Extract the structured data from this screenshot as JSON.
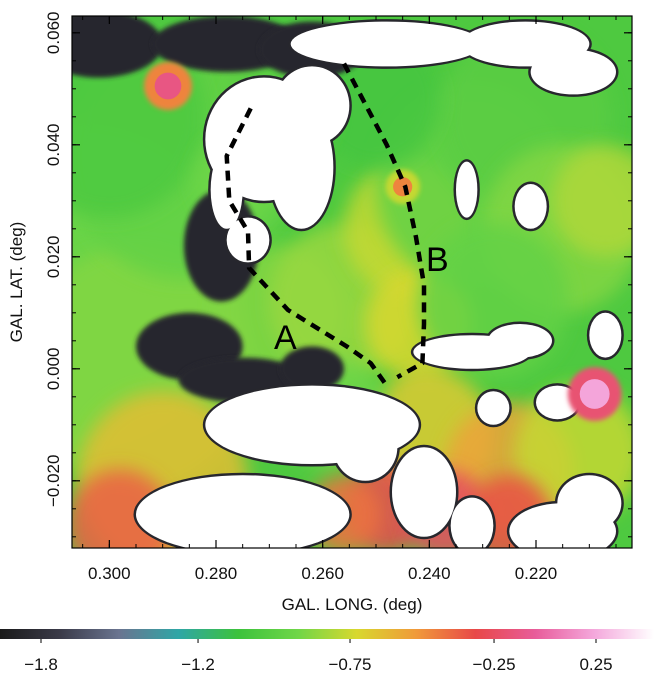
{
  "chart_data": {
    "type": "heatmap",
    "title": "",
    "xlabel": "GAL. LONG. (deg)",
    "ylabel": "GAL. LAT. (deg)",
    "xlim": [
      0.307,
      0.202
    ],
    "ylim": [
      -0.032,
      0.063
    ],
    "x_ticks": [
      {
        "value": 0.3,
        "label": "0.300"
      },
      {
        "value": 0.28,
        "label": "0.280"
      },
      {
        "value": 0.26,
        "label": "0.260"
      },
      {
        "value": 0.24,
        "label": "0.240"
      },
      {
        "value": 0.22,
        "label": "0.220"
      }
    ],
    "y_ticks": [
      {
        "value": 0.06,
        "label": "0.060"
      },
      {
        "value": 0.04,
        "label": "0.040"
      },
      {
        "value": 0.02,
        "label": "0.020"
      },
      {
        "value": 0.0,
        "label": "0.000"
      },
      {
        "value": -0.02,
        "label": "−0.020"
      }
    ],
    "colorbar": {
      "ticks": [
        {
          "value": -1.8,
          "label": "−1.8"
        },
        {
          "value": -1.2,
          "label": "−1.2"
        },
        {
          "value": -0.75,
          "label": "−0.75"
        },
        {
          "value": -0.25,
          "label": "−0.25"
        },
        {
          "value": 0.25,
          "label": "0.25"
        }
      ],
      "colormap": [
        "#1a1a1a",
        "#3a3a48",
        "#6a7490",
        "#2fa6a6",
        "#3cc23c",
        "#6fd648",
        "#d8d82e",
        "#f09a3a",
        "#e84848",
        "#e85c9a",
        "#f4a8dc",
        "#ffffff"
      ]
    },
    "annotations": [
      {
        "label": "A",
        "x": 0.267,
        "y": 0.0035
      },
      {
        "label": "B",
        "x": 0.2385,
        "y": 0.0175
      }
    ],
    "dashed_paths": [
      {
        "name": "A",
        "points": [
          [
            0.2735,
            0.0465
          ],
          [
            0.278,
            0.038
          ],
          [
            0.2775,
            0.03
          ],
          [
            0.274,
            0.0245
          ],
          [
            0.2738,
            0.018
          ],
          [
            0.2665,
            0.0105
          ],
          [
            0.2555,
            0.004
          ],
          [
            0.251,
            0.001
          ],
          [
            0.248,
            -0.003
          ]
        ]
      },
      {
        "name": "B",
        "points": [
          [
            0.256,
            0.0545
          ],
          [
            0.248,
            0.04
          ],
          [
            0.2445,
            0.0325
          ],
          [
            0.2425,
            0.0235
          ],
          [
            0.241,
            0.015
          ],
          [
            0.241,
            0.008
          ],
          [
            0.2413,
            0.001
          ],
          [
            0.246,
            -0.0015
          ]
        ]
      }
    ],
    "sources": [
      {
        "x": 0.289,
        "y": 0.0505,
        "level": 0.0,
        "r": 0.0025
      },
      {
        "x": 0.209,
        "y": -0.0045,
        "level": 0.3,
        "r": 0.0028
      },
      {
        "x": 0.245,
        "y": 0.0325,
        "level": -0.35,
        "r": 0.0018
      }
    ],
    "blobs": [
      {
        "x": 0.305,
        "y": 0.015,
        "level": -0.9,
        "r": 0.03
      },
      {
        "x": 0.295,
        "y": 0.0,
        "level": -0.85,
        "r": 0.022
      },
      {
        "x": 0.29,
        "y": -0.02,
        "level": -0.55,
        "r": 0.016
      },
      {
        "x": 0.298,
        "y": -0.028,
        "level": -0.25,
        "r": 0.01
      },
      {
        "x": 0.286,
        "y": 0.038,
        "level": -0.95,
        "r": 0.022
      },
      {
        "x": 0.3,
        "y": 0.045,
        "level": -1.05,
        "r": 0.018
      },
      {
        "x": 0.276,
        "y": 0.034,
        "level": -0.9,
        "r": 0.008
      },
      {
        "x": 0.268,
        "y": 0.01,
        "level": -0.85,
        "r": 0.012
      },
      {
        "x": 0.256,
        "y": 0.012,
        "level": -0.8,
        "r": 0.014
      },
      {
        "x": 0.244,
        "y": 0.025,
        "level": -0.7,
        "r": 0.012
      },
      {
        "x": 0.242,
        "y": 0.008,
        "level": -0.65,
        "r": 0.01
      },
      {
        "x": 0.232,
        "y": 0.033,
        "level": -0.95,
        "r": 0.018
      },
      {
        "x": 0.222,
        "y": 0.045,
        "level": -1.0,
        "r": 0.016
      },
      {
        "x": 0.215,
        "y": 0.025,
        "level": -0.85,
        "r": 0.015
      },
      {
        "x": 0.207,
        "y": 0.03,
        "level": -0.75,
        "r": 0.01
      },
      {
        "x": 0.228,
        "y": 0.012,
        "level": -0.95,
        "r": 0.014
      },
      {
        "x": 0.24,
        "y": -0.012,
        "level": -0.6,
        "r": 0.012
      },
      {
        "x": 0.225,
        "y": -0.018,
        "level": -0.45,
        "r": 0.012
      },
      {
        "x": 0.212,
        "y": -0.015,
        "level": -0.7,
        "r": 0.012
      },
      {
        "x": 0.258,
        "y": -0.008,
        "level": -0.9,
        "r": 0.01
      },
      {
        "x": 0.25,
        "y": 0.048,
        "level": -1.1,
        "r": 0.012
      },
      {
        "x": 0.268,
        "y": 0.046,
        "level": -1.0,
        "r": 0.01
      },
      {
        "x": 0.248,
        "y": -0.025,
        "level": -0.15,
        "r": 0.008
      },
      {
        "x": 0.237,
        "y": -0.026,
        "level": -0.1,
        "r": 0.008
      },
      {
        "x": 0.225,
        "y": -0.027,
        "level": -0.2,
        "r": 0.008
      },
      {
        "x": 0.256,
        "y": -0.026,
        "level": -0.3,
        "r": 0.007
      }
    ],
    "dark_regions": [
      {
        "x": 0.302,
        "y": 0.058,
        "rx": 0.012,
        "ry": 0.006
      },
      {
        "x": 0.278,
        "y": 0.058,
        "rx": 0.014,
        "ry": 0.005
      },
      {
        "x": 0.262,
        "y": 0.057,
        "rx": 0.01,
        "ry": 0.005
      },
      {
        "x": 0.279,
        "y": 0.022,
        "rx": 0.007,
        "ry": 0.01
      },
      {
        "x": 0.285,
        "y": 0.004,
        "rx": 0.01,
        "ry": 0.006
      },
      {
        "x": 0.275,
        "y": -0.002,
        "rx": 0.012,
        "ry": 0.004
      },
      {
        "x": 0.262,
        "y": 0.0,
        "rx": 0.006,
        "ry": 0.004
      }
    ],
    "blank_regions": [
      {
        "x": 0.271,
        "y": 0.041,
        "rx": 0.011,
        "ry": 0.011
      },
      {
        "x": 0.262,
        "y": 0.047,
        "rx": 0.007,
        "ry": 0.007
      },
      {
        "x": 0.264,
        "y": 0.036,
        "rx": 0.006,
        "ry": 0.011
      },
      {
        "x": 0.278,
        "y": 0.032,
        "rx": 0.003,
        "ry": 0.007
      },
      {
        "x": 0.274,
        "y": 0.023,
        "rx": 0.004,
        "ry": 0.004
      },
      {
        "x": 0.248,
        "y": 0.058,
        "rx": 0.018,
        "ry": 0.004
      },
      {
        "x": 0.222,
        "y": 0.058,
        "rx": 0.012,
        "ry": 0.004
      },
      {
        "x": 0.213,
        "y": 0.053,
        "rx": 0.008,
        "ry": 0.004
      },
      {
        "x": 0.233,
        "y": 0.032,
        "rx": 0.002,
        "ry": 0.005
      },
      {
        "x": 0.221,
        "y": 0.029,
        "rx": 0.003,
        "ry": 0.004
      },
      {
        "x": 0.232,
        "y": 0.003,
        "rx": 0.011,
        "ry": 0.003
      },
      {
        "x": 0.223,
        "y": 0.005,
        "rx": 0.006,
        "ry": 0.003
      },
      {
        "x": 0.207,
        "y": 0.006,
        "rx": 0.003,
        "ry": 0.004
      },
      {
        "x": 0.262,
        "y": -0.01,
        "rx": 0.02,
        "ry": 0.007
      },
      {
        "x": 0.275,
        "y": -0.026,
        "rx": 0.02,
        "ry": 0.007
      },
      {
        "x": 0.252,
        "y": -0.014,
        "rx": 0.006,
        "ry": 0.006
      },
      {
        "x": 0.241,
        "y": -0.022,
        "rx": 0.006,
        "ry": 0.008
      },
      {
        "x": 0.232,
        "y": -0.028,
        "rx": 0.004,
        "ry": 0.005
      },
      {
        "x": 0.215,
        "y": -0.029,
        "rx": 0.01,
        "ry": 0.005
      },
      {
        "x": 0.21,
        "y": -0.024,
        "rx": 0.006,
        "ry": 0.005
      },
      {
        "x": 0.228,
        "y": -0.007,
        "rx": 0.003,
        "ry": 0.003
      },
      {
        "x": 0.216,
        "y": -0.006,
        "rx": 0.004,
        "ry": 0.003
      }
    ]
  }
}
